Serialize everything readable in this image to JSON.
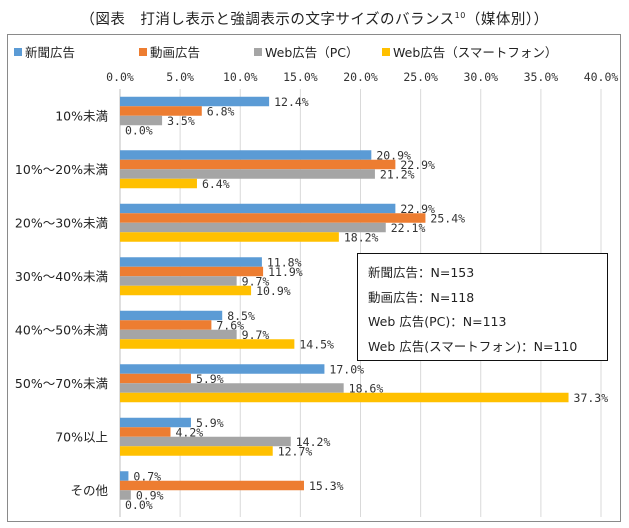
{
  "figure": {
    "title": "（図表　打消し表示と強調表示の文字サイズのバランス",
    "title_sup": "10",
    "title_suffix": "（媒体別））"
  },
  "colors": {
    "newspaper": "#5b9bd5",
    "video": "#ed7d31",
    "web_pc": "#a5a5a5",
    "web_smartphone": "#ffc000",
    "grid": "#d9d9d9",
    "axis": "#bfbfbf"
  },
  "n_box": {
    "lines": [
      "新聞広告：N=153",
      "動画広告：N=118",
      "Web 広告(PC)：N=113",
      "Web 広告(スマートフォン)：N=110"
    ]
  },
  "chart_data": {
    "type": "bar",
    "orientation": "horizontal",
    "categories": [
      "10%未満",
      "10%～20%未満",
      "20%～30%未満",
      "30%～40%未満",
      "40%～50%未満",
      "50%～70%未満",
      "70%以上",
      "その他"
    ],
    "series": [
      {
        "name": "新聞広告",
        "color_key": "newspaper",
        "values": [
          12.4,
          20.9,
          22.9,
          11.8,
          8.5,
          17.0,
          5.9,
          0.7
        ]
      },
      {
        "name": "動画広告",
        "color_key": "video",
        "values": [
          6.8,
          22.9,
          25.4,
          11.9,
          7.6,
          5.9,
          4.2,
          15.3
        ]
      },
      {
        "name": "Web広告（PC）",
        "color_key": "web_pc",
        "values": [
          3.5,
          21.2,
          22.1,
          9.7,
          9.7,
          18.6,
          14.2,
          0.9
        ]
      },
      {
        "name": "Web広告（スマートフォン）",
        "color_key": "web_smartphone",
        "values": [
          0.0,
          6.4,
          18.2,
          10.9,
          14.5,
          37.3,
          12.7,
          0.0
        ]
      }
    ],
    "x_ticks": [
      "0.0%",
      "5.0%",
      "10.0%",
      "15.0%",
      "20.0%",
      "25.0%",
      "30.0%",
      "35.0%",
      "40.0%"
    ],
    "xlim": [
      0,
      40
    ],
    "value_format": "one decimal with %",
    "grid": true,
    "legend_position": "top"
  }
}
